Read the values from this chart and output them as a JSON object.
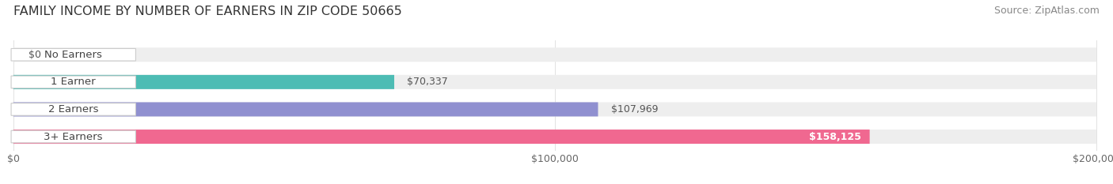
{
  "title": "FAMILY INCOME BY NUMBER OF EARNERS IN ZIP CODE 50665",
  "source": "Source: ZipAtlas.com",
  "categories": [
    "No Earners",
    "1 Earner",
    "2 Earners",
    "3+ Earners"
  ],
  "values": [
    0,
    70337,
    107969,
    158125
  ],
  "bar_colors": [
    "#c4a0c8",
    "#4dbcb4",
    "#9090d0",
    "#f06890"
  ],
  "value_labels": [
    "$0",
    "$70,337",
    "$107,969",
    "$158,125"
  ],
  "value_inside": [
    false,
    false,
    false,
    true
  ],
  "xmax": 200000,
  "xticks": [
    0,
    100000,
    200000
  ],
  "xtick_labels": [
    "$0",
    "$100,000",
    "$200,000"
  ],
  "bg_color": "#ffffff",
  "bar_bg_color": "#eeeeee",
  "title_fontsize": 11.5,
  "source_fontsize": 9,
  "label_fontsize": 9.5,
  "value_fontsize": 9,
  "tick_fontsize": 9
}
